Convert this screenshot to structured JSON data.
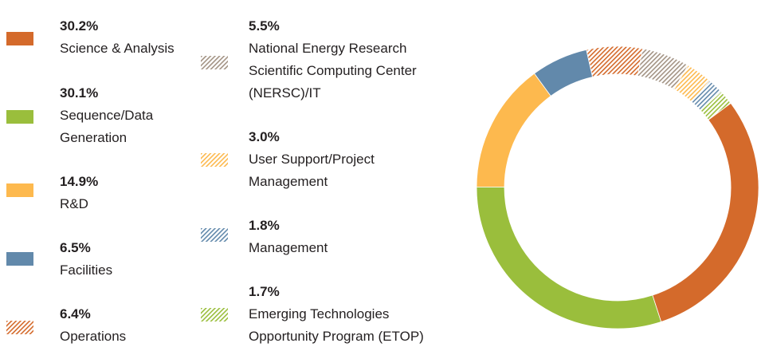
{
  "chart_data": {
    "type": "pie",
    "variant": "donut",
    "legend_position": "left",
    "start_angle_deg": 162,
    "direction": "clockwise",
    "slices": [
      {
        "value": 30.1,
        "value_label": "30.1%",
        "label": [
          "Sequence/Data",
          "Generation"
        ],
        "color": "#9abe3c",
        "pattern": false
      },
      {
        "value": 14.9,
        "value_label": "14.9%",
        "label": [
          "R&D"
        ],
        "color": "#fdb94e",
        "pattern": false
      },
      {
        "value": 6.5,
        "value_label": "6.5%",
        "label": [
          "Facilities"
        ],
        "color": "#6289ab",
        "pattern": false
      },
      {
        "value": 6.4,
        "value_label": "6.4%",
        "label": [
          "Operations"
        ],
        "color": "#d46a2b",
        "pattern": true
      },
      {
        "value": 5.5,
        "value_label": "5.5%",
        "label": [
          "National Energy Research",
          "Scientific Computing Center",
          "(NERSC)/IT"
        ],
        "color": "#a39384",
        "pattern": true
      },
      {
        "value": 3.0,
        "value_label": "3.0%",
        "label": [
          "User Support/Project",
          "Management"
        ],
        "color": "#fdb94e",
        "pattern": true
      },
      {
        "value": 1.8,
        "value_label": "1.8%",
        "label": [
          "Management"
        ],
        "color": "#6289ab",
        "pattern": true
      },
      {
        "value": 1.7,
        "value_label": "1.7%",
        "label": [
          "Emerging Technologies",
          "Opportunity Program (ETOP)"
        ],
        "color": "#9abe3c",
        "pattern": true
      },
      {
        "value": 30.2,
        "value_label": "30.2%",
        "label": [
          "Science & Analysis"
        ],
        "color": "#d46a2b",
        "pattern": false
      }
    ],
    "legend_order": [
      8,
      0,
      1,
      2,
      3,
      4,
      5,
      6,
      7
    ]
  }
}
